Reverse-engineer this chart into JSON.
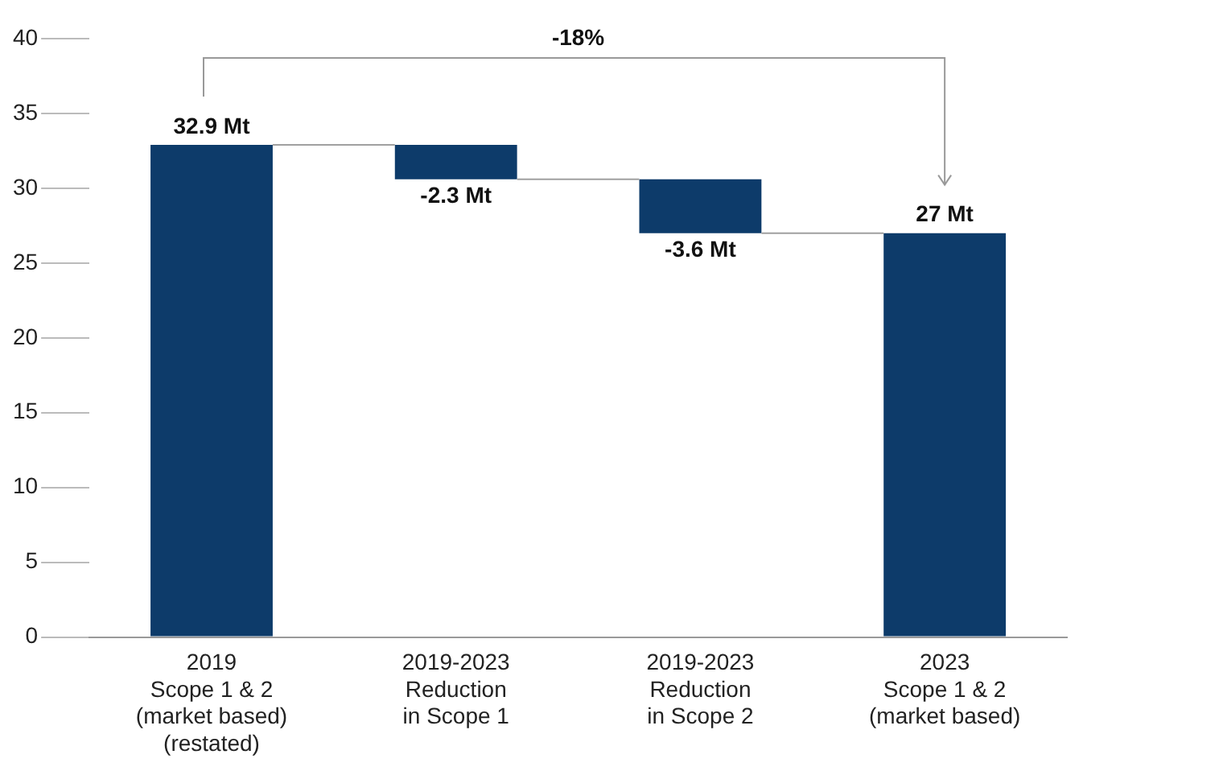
{
  "chart_data": {
    "type": "bar",
    "categories": [
      "2019\nScope 1 & 2\n(market based)\n(restated)",
      "2019-2023\nReduction\nin Scope 1",
      "2019-2023\nReduction\nin Scope 2",
      "2023\nScope 1 & 2\n(market based)"
    ],
    "values": [
      32.9,
      -2.3,
      -3.6,
      27
    ],
    "base": [
      0,
      32.9,
      30.6,
      0
    ],
    "color": "#0d3b6a",
    "value_labels": [
      "32.9 Mt",
      "-2.3 Mt",
      "-3.6 Mt",
      "27 Mt"
    ],
    "ylim": [
      0,
      40
    ],
    "yticks": [
      0,
      5,
      10,
      15,
      20,
      25,
      30,
      35,
      40
    ],
    "grid": false,
    "annotations": [
      "-18%"
    ]
  }
}
